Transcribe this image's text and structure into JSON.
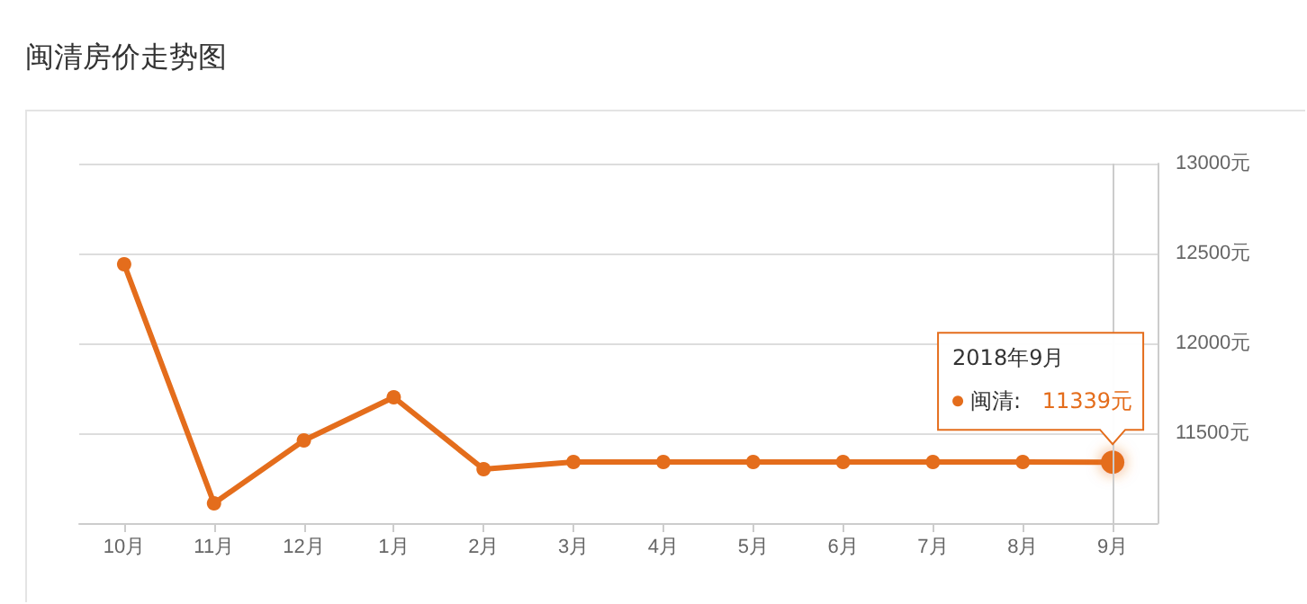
{
  "chart_data": {
    "type": "line",
    "title": "闽清房价走势图",
    "categories": [
      "10月",
      "11月",
      "12月",
      "1月",
      "2月",
      "3月",
      "4月",
      "5月",
      "6月",
      "7月",
      "8月",
      "9月"
    ],
    "series": [
      {
        "name": "闽清:",
        "color": "#e46d1c",
        "values": [
          12440,
          11110,
          11460,
          11700,
          11300,
          11340,
          11340,
          11340,
          11340,
          11340,
          11340,
          11339
        ],
        "value_labels": [
          null,
          null,
          null,
          null,
          null,
          null,
          null,
          null,
          null,
          null,
          null,
          "11339元"
        ]
      }
    ],
    "annotations": [
      "2018年9月"
    ],
    "ref_lines": [
      {
        "axis": "x",
        "value": "9月",
        "color": "#cccccc"
      }
    ],
    "ylim": [
      11000,
      13000
    ],
    "yticks": [
      {
        "value": 11000,
        "label": null
      },
      {
        "value": 11500,
        "label": "11500元"
      },
      {
        "value": 12000,
        "label": "12000元"
      },
      {
        "value": 12500,
        "label": "12500元"
      },
      {
        "value": 13000,
        "label": "13000元"
      }
    ],
    "grid": "y",
    "legend": "right",
    "marker": "circle",
    "line_style": "solid"
  }
}
